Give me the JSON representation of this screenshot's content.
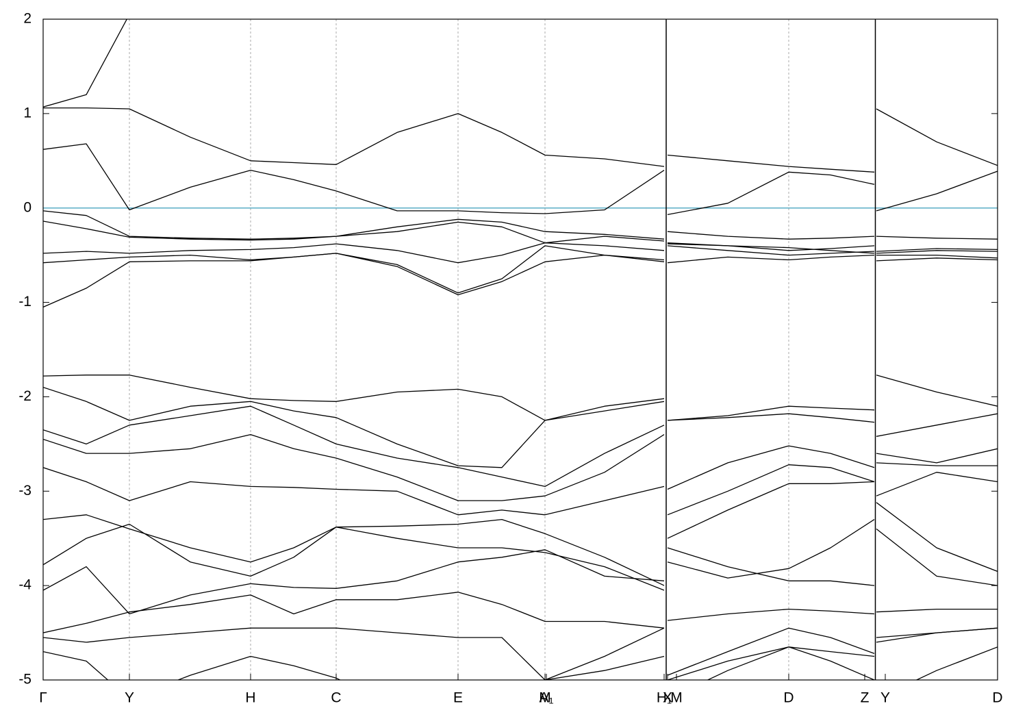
{
  "chart_data": {
    "type": "line",
    "x": [
      0,
      0.63,
      1.26,
      2.15,
      3.03,
      3.66,
      4.28,
      5.17,
      6.06,
      6.7,
      7.33,
      8.2,
      9.07,
      9.1,
      9.12,
      10.0,
      10.89,
      11.5,
      12.14,
      12.155,
      12.17,
      13.05,
      13.94
    ],
    "xlim": [
      0,
      13.94
    ],
    "xticks": [
      {
        "value": 0,
        "label": "Γ"
      },
      {
        "value": 1.26,
        "label": "Y"
      },
      {
        "value": 3.03,
        "label": "H"
      },
      {
        "value": 4.28,
        "label": "C"
      },
      {
        "value": 6.06,
        "label": "E"
      },
      {
        "value": 7.33,
        "label": "M"
      },
      {
        "value": 7.35,
        "label": "A₁"
      },
      {
        "value": 9.07,
        "label": "H₁"
      },
      {
        "value": 9.12,
        "label": "X"
      },
      {
        "value": 9.25,
        "label": "M"
      },
      {
        "value": 10.89,
        "label": "D"
      },
      {
        "value": 12.0,
        "label": "Z"
      },
      {
        "value": 12.3,
        "label": "Y"
      },
      {
        "value": 13.94,
        "label": "D"
      }
    ],
    "xgrid_positions": [
      1.26,
      3.03,
      4.28,
      6.06,
      7.33,
      10.89
    ],
    "breaks": [
      9.1,
      12.155
    ],
    "ylim": [
      -5,
      2
    ],
    "yticks": [
      2,
      1,
      0,
      -1,
      -2,
      -3,
      -4,
      -5
    ],
    "hlines": [
      {
        "value": 0,
        "color": "#5aaec6"
      }
    ],
    "series": [
      {
        "color": "#000000",
        "values": [
          1.07,
          1.2,
          2.05,
          null,
          null,
          null,
          null,
          null,
          null,
          null,
          null,
          null,
          null,
          null,
          null,
          null,
          null,
          null,
          null,
          null,
          null,
          null,
          null
        ]
      },
      {
        "color": "#000000",
        "values": [
          1.06,
          1.06,
          1.05,
          0.75,
          0.5,
          0.48,
          0.46,
          0.8,
          1.0,
          0.8,
          0.56,
          0.52,
          0.44,
          null,
          0.56,
          0.5,
          0.44,
          0.41,
          0.38,
          null,
          1.05,
          0.7,
          0.45
        ]
      },
      {
        "color": "#000000",
        "values": [
          0.62,
          0.68,
          -0.02,
          0.22,
          0.4,
          0.3,
          0.18,
          -0.03,
          -0.03,
          -0.05,
          -0.06,
          -0.02,
          0.4,
          null,
          -0.07,
          0.05,
          0.38,
          0.35,
          0.25,
          null,
          -0.03,
          0.15,
          0.39
        ]
      },
      {
        "color": "#000000",
        "values": [
          -0.03,
          -0.08,
          -0.3,
          -0.32,
          -0.33,
          -0.32,
          -0.3,
          -0.2,
          -0.12,
          -0.15,
          -0.25,
          -0.28,
          -0.33,
          null,
          -0.25,
          -0.3,
          -0.33,
          -0.32,
          -0.3,
          null,
          -0.3,
          -0.32,
          -0.33
        ]
      },
      {
        "color": "#000000",
        "values": [
          -0.14,
          -0.22,
          -0.31,
          -0.33,
          -0.34,
          -0.33,
          -0.3,
          -0.25,
          -0.15,
          -0.2,
          -0.37,
          -0.3,
          -0.35,
          null,
          -0.37,
          -0.4,
          -0.45,
          -0.43,
          -0.4,
          null,
          -0.46,
          -0.43,
          -0.44
        ]
      },
      {
        "color": "#000000",
        "values": [
          -0.48,
          -0.46,
          -0.48,
          -0.45,
          -0.44,
          -0.42,
          -0.38,
          -0.45,
          -0.58,
          -0.5,
          -0.37,
          -0.4,
          -0.45,
          null,
          -0.38,
          -0.4,
          -0.42,
          -0.45,
          -0.48,
          null,
          -0.48,
          -0.45,
          -0.46
        ]
      },
      {
        "color": "#000000",
        "values": [
          -0.58,
          -0.55,
          -0.52,
          -0.5,
          -0.55,
          -0.52,
          -0.48,
          -0.6,
          -0.9,
          -0.75,
          -0.4,
          -0.5,
          -0.55,
          null,
          -0.58,
          -0.52,
          -0.55,
          -0.52,
          -0.5,
          null,
          -0.56,
          -0.53,
          -0.55
        ]
      },
      {
        "color": "#000000",
        "values": [
          -1.05,
          -0.85,
          -0.57,
          -0.56,
          -0.56,
          -0.52,
          -0.48,
          -0.62,
          -0.92,
          -0.78,
          -0.57,
          -0.5,
          -0.57,
          null,
          -0.4,
          -0.45,
          -0.5,
          -0.48,
          -0.46,
          null,
          -0.5,
          -0.5,
          -0.53
        ]
      },
      {
        "color": "#000000",
        "values": [
          -1.78,
          -1.77,
          -1.77,
          -1.9,
          -2.02,
          -2.04,
          -2.05,
          -1.95,
          -1.92,
          -2.0,
          -2.25,
          -2.1,
          -2.02,
          null,
          -2.25,
          -2.2,
          -2.1,
          -2.12,
          -2.14,
          null,
          -1.77,
          -1.95,
          -2.1
        ]
      },
      {
        "color": "#000000",
        "values": [
          -1.9,
          -2.05,
          -2.25,
          -2.1,
          -2.05,
          -2.15,
          -2.22,
          -2.5,
          -2.73,
          -2.75,
          -2.25,
          -2.15,
          -2.05,
          null,
          -2.25,
          -2.22,
          -2.18,
          -2.22,
          -2.27,
          null,
          -2.42,
          -2.3,
          -2.18
        ]
      },
      {
        "color": "#000000",
        "values": [
          -2.35,
          -2.5,
          -2.3,
          -2.2,
          -2.1,
          -2.3,
          -2.5,
          -2.65,
          -2.75,
          -2.85,
          -2.95,
          -2.6,
          -2.3,
          null,
          -2.98,
          -2.7,
          -2.52,
          -2.6,
          -2.75,
          null,
          -2.6,
          -2.7,
          -2.55
        ]
      },
      {
        "color": "#000000",
        "values": [
          -2.45,
          -2.6,
          -2.6,
          -2.55,
          -2.4,
          -2.55,
          -2.65,
          -2.85,
          -3.1,
          -3.1,
          -3.05,
          -2.8,
          -2.4,
          null,
          -3.25,
          -3.0,
          -2.72,
          -2.75,
          -2.9,
          null,
          -2.7,
          -2.73,
          -2.73
        ]
      },
      {
        "color": "#000000",
        "values": [
          -2.75,
          -2.9,
          -3.1,
          -2.9,
          -2.95,
          -2.96,
          -2.98,
          -3.0,
          -3.25,
          -3.2,
          -3.25,
          -3.1,
          -2.95,
          null,
          -3.5,
          -3.2,
          -2.92,
          -2.92,
          -2.9,
          null,
          -3.05,
          -2.8,
          -2.9
        ]
      },
      {
        "color": "#000000",
        "values": [
          -3.3,
          -3.25,
          -3.4,
          -3.6,
          -3.75,
          -3.6,
          -3.38,
          -3.37,
          -3.35,
          -3.3,
          -3.45,
          -3.7,
          -4.0,
          null,
          -3.6,
          -3.8,
          -3.95,
          -3.95,
          -4.0,
          null,
          -3.12,
          -3.6,
          -3.85
        ]
      },
      {
        "color": "#000000",
        "values": [
          -3.78,
          -3.5,
          -3.35,
          -3.75,
          -3.9,
          -3.7,
          -3.38,
          -3.5,
          -3.6,
          -3.6,
          -3.65,
          -3.8,
          -4.05,
          null,
          -3.75,
          -3.92,
          -3.82,
          -3.6,
          -3.3,
          null,
          -3.4,
          -3.9,
          -4.0
        ]
      },
      {
        "color": "#000000",
        "values": [
          -4.05,
          -3.8,
          -4.3,
          -4.1,
          -3.98,
          -4.02,
          -4.03,
          -3.95,
          -3.75,
          -3.7,
          -3.62,
          -3.9,
          -3.95,
          null,
          -4.37,
          -4.3,
          -4.25,
          -4.27,
          -4.3,
          null,
          -4.28,
          -4.25,
          -4.25
        ]
      },
      {
        "color": "#000000",
        "values": [
          -4.5,
          -4.4,
          -4.28,
          -4.2,
          -4.1,
          -4.3,
          -4.15,
          -4.15,
          -4.07,
          -4.2,
          -4.38,
          -4.38,
          -4.45,
          null,
          -4.95,
          -4.7,
          -4.45,
          -4.55,
          -4.72,
          null,
          -4.55,
          -4.5,
          -4.45
        ]
      },
      {
        "color": "#000000",
        "values": [
          -4.55,
          -4.6,
          -4.55,
          -4.5,
          -4.45,
          -4.45,
          -4.45,
          -4.5,
          -4.55,
          -4.55,
          -5.0,
          -4.75,
          -4.45,
          null,
          -5.0,
          -4.8,
          -4.65,
          -4.7,
          -4.75,
          null,
          -4.6,
          -4.5,
          -4.45
        ]
      },
      {
        "color": "#000000",
        "values": [
          -4.7,
          -4.8,
          -5.2,
          -4.95,
          -4.75,
          -4.85,
          -4.98,
          -5.3,
          -5.5,
          -5.3,
          -5.0,
          -4.9,
          -4.75,
          null,
          -5.2,
          -4.9,
          -4.65,
          -4.8,
          -5.0,
          null,
          -5.2,
          -4.9,
          -4.65
        ]
      }
    ]
  }
}
